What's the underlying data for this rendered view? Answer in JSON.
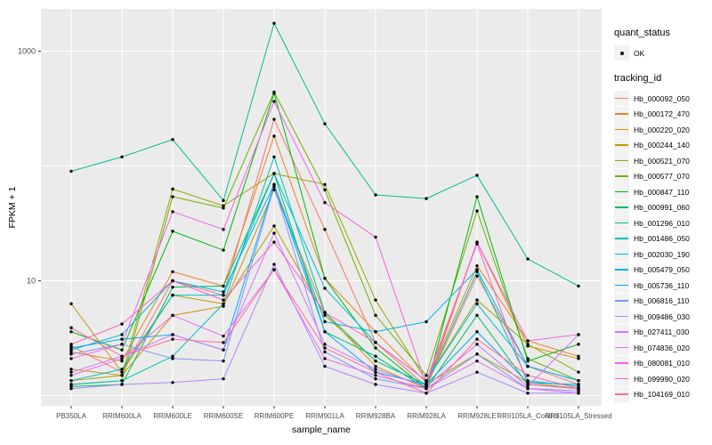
{
  "figure": {
    "background": "#FFFFFF",
    "panel_background": "#EBEBEB",
    "gridline_color": "#FFFFFF",
    "point_color": "#000000",
    "axis_text_color": "#4D4D4D"
  },
  "chart_data": {
    "type": "line",
    "title": "",
    "x_label": "sample_name",
    "y_label": "FPKM + 1",
    "y_scale": "log10",
    "y_tick_labels": [
      "1000",
      "10"
    ],
    "y_tick_values": [
      1000,
      10
    ],
    "y_range_approx": [
      0.85,
      2300
    ],
    "grid": "on",
    "legend_position": "right",
    "legend_title": "tracking_id",
    "quant_status": {
      "title": "quant_status",
      "items": [
        {
          "label": "OK",
          "symbol": "point"
        }
      ]
    },
    "categories": [
      "PB350LA",
      "RRIM600LA",
      "RRIM600LE",
      "RRIM600SE",
      "RRIM600PE",
      "RRIM901LA",
      "RRIM928BA",
      "RRIM928LA",
      "RRIM928LE",
      "RRII105LA_Control",
      "RRII105LA_Stressed"
    ],
    "series": [
      {
        "name": "Hb_000092_050",
        "color": "#F8766D",
        "values": [
          2.7,
          1.6,
          10,
          7.5,
          255,
          28,
          2.9,
          1.2,
          11,
          1.8,
          1.25
        ]
      },
      {
        "name": "Hb_000172_470",
        "color": "#E9842C",
        "values": [
          2.4,
          2.0,
          12,
          9,
          182,
          10.5,
          3.6,
          1.3,
          13.5,
          3.0,
          2.2
        ]
      },
      {
        "name": "Hb_000220_020",
        "color": "#D69100",
        "values": [
          1.7,
          1.5,
          5.0,
          6.0,
          62,
          5.3,
          1.8,
          1.15,
          21.7,
          2.7,
          2.1
        ]
      },
      {
        "name": "Hb_000244_140",
        "color": "#BC9D00",
        "values": [
          6.3,
          1.6,
          7.5,
          6.3,
          30,
          5.0,
          2.0,
          1.25,
          2.3,
          1.3,
          1.15
        ]
      },
      {
        "name": "Hb_000521_070",
        "color": "#9CA700",
        "values": [
          1.35,
          1.5,
          63,
          45,
          86,
          69,
          6.8,
          1.35,
          6.8,
          2.8,
          1.6
        ]
      },
      {
        "name": "Hb_000577_070",
        "color": "#6FB000",
        "values": [
          1.25,
          1.35,
          54,
          43,
          440,
          62,
          5.0,
          1.5,
          40.6,
          2.1,
          1.35
        ]
      },
      {
        "name": "Hb_000847_110",
        "color": "#00B813",
        "values": [
          3.6,
          2.5,
          27,
          18.5,
          430,
          10.5,
          2.6,
          1.15,
          54,
          2.0,
          2.8
        ]
      },
      {
        "name": "Hb_000991_060",
        "color": "#00BD61",
        "values": [
          1.2,
          1.25,
          8.8,
          9,
          86,
          3.6,
          2.2,
          1.15,
          5.0,
          1.25,
          1.15
        ]
      },
      {
        "name": "Hb_001296_010",
        "color": "#00C08E",
        "values": [
          90,
          120,
          170,
          50,
          1750,
          233,
          56,
          52,
          83,
          15.5,
          9
        ]
      },
      {
        "name": "Hb_001486_050",
        "color": "#00C0B4",
        "values": [
          1.25,
          1.35,
          2.2,
          6.3,
          120,
          5.3,
          2.0,
          1.25,
          12,
          1.35,
          1.2
        ]
      },
      {
        "name": "Hb_002030_190",
        "color": "#00BDD4",
        "values": [
          1.35,
          1.7,
          7.5,
          7.5,
          86,
          8.6,
          2.9,
          1.35,
          6.3,
          1.8,
          1.35
        ]
      },
      {
        "name": "Hb_005479_050",
        "color": "#00B5EE",
        "values": [
          2.5,
          3.4,
          10,
          8,
          69,
          4.4,
          3.6,
          4.4,
          12.5,
          1.8,
          1.35
        ]
      },
      {
        "name": "Hb_005736_110",
        "color": "#00A7FF",
        "values": [
          2.6,
          3.1,
          3.4,
          2.5,
          69,
          3.6,
          1.6,
          1.25,
          3.6,
          1.3,
          1.25
        ]
      },
      {
        "name": "Hb_006816_110",
        "color": "#7F96FF",
        "values": [
          2.3,
          2.8,
          2.1,
          2.0,
          66,
          2.4,
          1.4,
          1.15,
          2.3,
          1.15,
          1.1
        ]
      },
      {
        "name": "Hb_009486_030",
        "color": "#AC88FF",
        "values": [
          1.15,
          1.25,
          1.3,
          1.4,
          13.9,
          1.8,
          1.25,
          1.05,
          1.6,
          1.05,
          1.05
        ]
      },
      {
        "name": "Hb_027411_030",
        "color": "#CF78FF",
        "values": [
          1.6,
          2.2,
          3.4,
          2.5,
          26,
          2.8,
          1.7,
          1.2,
          2.8,
          1.2,
          3.4
        ]
      },
      {
        "name": "Hb_074836_020",
        "color": "#E56DF5",
        "values": [
          1.5,
          2.1,
          5.0,
          3.3,
          12.5,
          2.1,
          1.5,
          1.15,
          2.0,
          1.15,
          1.05
        ]
      },
      {
        "name": "Hb_080081_010",
        "color": "#F464E5",
        "values": [
          2.1,
          2.8,
          40,
          28,
          365,
          48,
          24,
          1.25,
          21.7,
          3.0,
          3.4
        ]
      },
      {
        "name": "Hb_099990_020",
        "color": "#FF61C7",
        "values": [
          2.8,
          4.2,
          10,
          6.8,
          21.7,
          5.3,
          2.9,
          1.35,
          21,
          1.25,
          1.15
        ]
      },
      {
        "name": "Hb_104169_010",
        "color": "#FF6C9A",
        "values": [
          3.9,
          2.2,
          3.1,
          2.9,
          12.5,
          2.6,
          1.6,
          1.05,
          3.1,
          1.5,
          1.15
        ]
      }
    ]
  }
}
